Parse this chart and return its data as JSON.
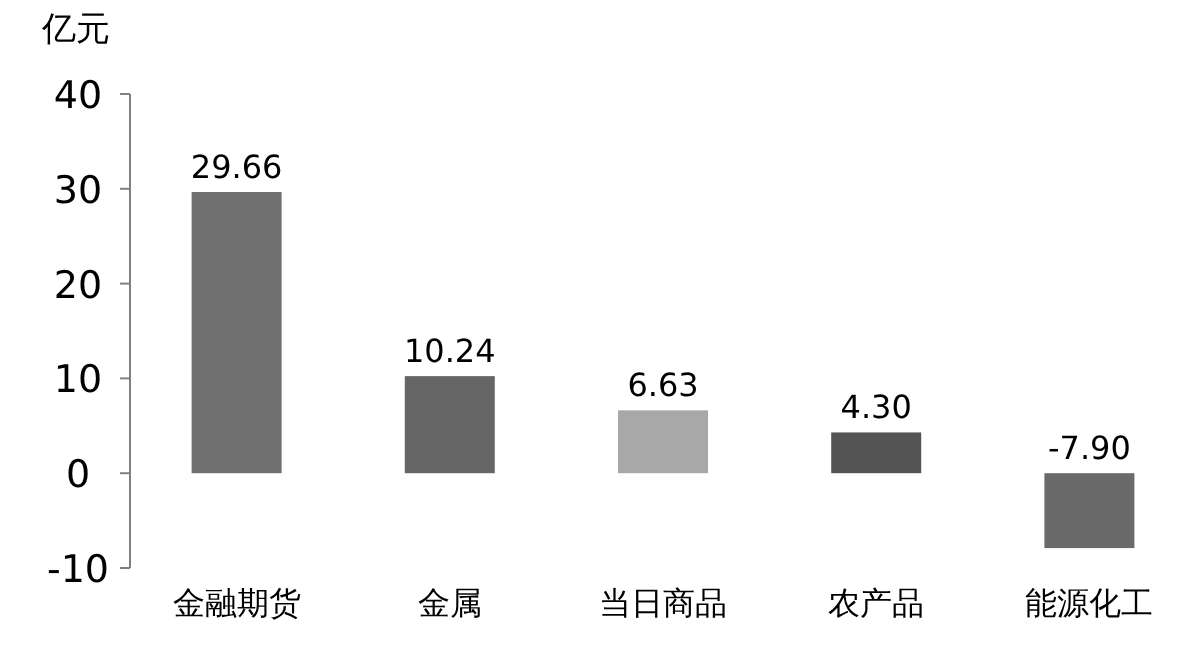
{
  "chart_data": {
    "type": "bar",
    "ylabel": "亿元",
    "categories": [
      "金融期货",
      "金属",
      "当日商品",
      "农产品",
      "能源化工"
    ],
    "values": [
      29.66,
      10.24,
      6.63,
      4.3,
      -7.9
    ],
    "colors": [
      "#6f6f6f",
      "#666666",
      "#a8a8a8",
      "#545454",
      "#6a6a6a"
    ],
    "value_labels": [
      "29.66",
      "10.24",
      "6.63",
      "4.30",
      "-7.90"
    ],
    "ylim": [
      -10,
      40
    ],
    "yticks": [
      -10,
      0,
      10,
      20,
      30,
      40
    ],
    "grid": false
  }
}
